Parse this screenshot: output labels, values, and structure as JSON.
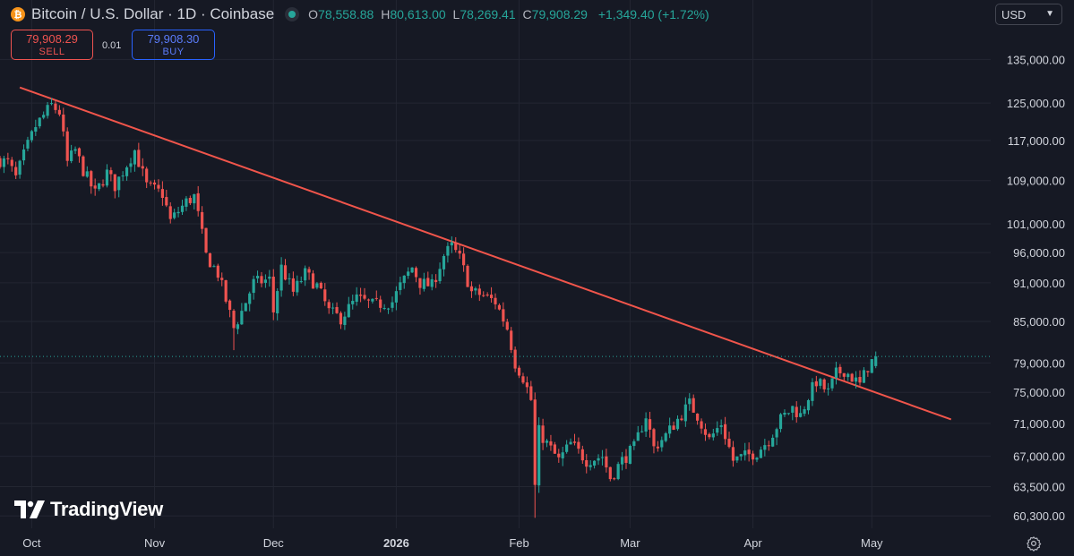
{
  "header": {
    "coin_icon": "bitcoin-icon",
    "coin_glyph": "₿",
    "title": "Bitcoin / U.S. Dollar · 1D · Coinbase",
    "status_icon": "market-status-dot",
    "o_label": "O",
    "o_value": "78,558.88",
    "h_label": "H",
    "h_value": "80,613.00",
    "l_label": "L",
    "l_value": "78,269.41",
    "c_label": "C",
    "c_value": "79,908.29",
    "change": "+1,349.40 (+1.72%)"
  },
  "trade": {
    "sell_price": "79,908.29",
    "sell_label": "SELL",
    "spread": "0.01",
    "buy_price": "79,908.30",
    "buy_label": "BUY"
  },
  "currency": {
    "value": "USD",
    "icon": "chevron-down-icon"
  },
  "branding": {
    "logo_icon": "tradingview-logo-icon",
    "name": "TradingView"
  },
  "colors": {
    "background": "#161924",
    "up": "#26a69a",
    "down": "#ef5350",
    "trendline": "#f0554b",
    "grid": "#232632",
    "axis_text": "#d1d4dc"
  },
  "chart_data": {
    "type": "candlestick",
    "title": "Bitcoin / U.S. Dollar · 1D · Coinbase",
    "xlabel": "",
    "ylabel": "",
    "interval": "1D",
    "y_scale": "log",
    "ylim": [
      59000,
      143000
    ],
    "y_ticks": [
      {
        "v": 135000,
        "label": "135,000.00"
      },
      {
        "v": 125000,
        "label": "125,000.00"
      },
      {
        "v": 117000,
        "label": "117,000.00"
      },
      {
        "v": 109000,
        "label": "109,000.00"
      },
      {
        "v": 101000,
        "label": "101,000.00"
      },
      {
        "v": 96000,
        "label": "96,000.00"
      },
      {
        "v": 91000,
        "label": "91,000.00"
      },
      {
        "v": 85000,
        "label": "85,000.00"
      },
      {
        "v": 79000,
        "label": "79,000.00"
      },
      {
        "v": 75000,
        "label": "75,000.00"
      },
      {
        "v": 71000,
        "label": "71,000.00"
      },
      {
        "v": 67000,
        "label": "67,000.00"
      },
      {
        "v": 63500,
        "label": "63,500.00"
      },
      {
        "v": 60300,
        "label": "60,300.00"
      }
    ],
    "x_range": [
      "2025-09-23",
      "2026-05-31"
    ],
    "x_ticks": [
      {
        "date": "2025-10-01",
        "label": "Oct",
        "bold": false
      },
      {
        "date": "2025-11-01",
        "label": "Nov",
        "bold": false
      },
      {
        "date": "2025-12-01",
        "label": "Dec",
        "bold": false
      },
      {
        "date": "2026-01-01",
        "label": "2026",
        "bold": true
      },
      {
        "date": "2026-02-01",
        "label": "Feb",
        "bold": false
      },
      {
        "date": "2026-03-01",
        "label": "Mar",
        "bold": false
      },
      {
        "date": "2026-04-01",
        "label": "Apr",
        "bold": false
      },
      {
        "date": "2026-05-01",
        "label": "May",
        "bold": false
      }
    ],
    "last_price": 79908.29,
    "trendline": {
      "start": {
        "date": "2025-09-28",
        "price": 128500
      },
      "end": {
        "date": "2026-05-21",
        "price": 71500
      }
    },
    "grid": true,
    "anchors": [
      {
        "date": "2025-09-23",
        "close": 113000
      },
      {
        "date": "2025-09-25",
        "close": 112500
      },
      {
        "date": "2025-09-27",
        "close": 109500
      },
      {
        "date": "2025-09-29",
        "close": 114000
      },
      {
        "date": "2025-10-02",
        "close": 120000
      },
      {
        "date": "2025-10-06",
        "close": 124500
      },
      {
        "date": "2025-10-08",
        "close": 123000
      },
      {
        "date": "2025-10-10",
        "close": 112500
      },
      {
        "date": "2025-10-12",
        "close": 115000
      },
      {
        "date": "2025-10-14",
        "close": 111000
      },
      {
        "date": "2025-10-17",
        "close": 106500
      },
      {
        "date": "2025-10-20",
        "close": 110500
      },
      {
        "date": "2025-10-22",
        "close": 108000
      },
      {
        "date": "2025-10-27",
        "close": 115000
      },
      {
        "date": "2025-10-30",
        "close": 108000
      },
      {
        "date": "2025-11-03",
        "close": 106500
      },
      {
        "date": "2025-11-05",
        "close": 101500
      },
      {
        "date": "2025-11-09",
        "close": 105000
      },
      {
        "date": "2025-11-11",
        "close": 106000
      },
      {
        "date": "2025-11-14",
        "close": 95500
      },
      {
        "date": "2025-11-17",
        "close": 92500
      },
      {
        "date": "2025-11-21",
        "close": 84000
      },
      {
        "date": "2025-11-23",
        "close": 86500
      },
      {
        "date": "2025-11-26",
        "close": 91000
      },
      {
        "date": "2025-11-30",
        "close": 91500
      },
      {
        "date": "2025-12-01",
        "close": 86500
      },
      {
        "date": "2025-12-03",
        "close": 93500
      },
      {
        "date": "2025-12-06",
        "close": 89500
      },
      {
        "date": "2025-12-09",
        "close": 92500
      },
      {
        "date": "2025-12-12",
        "close": 90500
      },
      {
        "date": "2025-12-15",
        "close": 86500
      },
      {
        "date": "2025-12-18",
        "close": 85500
      },
      {
        "date": "2025-12-22",
        "close": 88500
      },
      {
        "date": "2025-12-26",
        "close": 87500
      },
      {
        "date": "2025-12-31",
        "close": 88000
      },
      {
        "date": "2026-01-02",
        "close": 90500
      },
      {
        "date": "2026-01-05",
        "close": 93500
      },
      {
        "date": "2026-01-07",
        "close": 91000
      },
      {
        "date": "2026-01-10",
        "close": 90500
      },
      {
        "date": "2026-01-13",
        "close": 95500
      },
      {
        "date": "2026-01-15",
        "close": 97000
      },
      {
        "date": "2026-01-17",
        "close": 95000
      },
      {
        "date": "2026-01-20",
        "close": 89500
      },
      {
        "date": "2026-01-23",
        "close": 89000
      },
      {
        "date": "2026-01-26",
        "close": 88000
      },
      {
        "date": "2026-01-29",
        "close": 84000
      },
      {
        "date": "2026-01-31",
        "close": 79000
      },
      {
        "date": "2026-02-02",
        "close": 77000
      },
      {
        "date": "2026-02-04",
        "close": 74000
      },
      {
        "date": "2026-02-05",
        "close": 63500
      },
      {
        "date": "2026-02-06",
        "close": 70000
      },
      {
        "date": "2026-02-08",
        "close": 68500
      },
      {
        "date": "2026-02-11",
        "close": 66500
      },
      {
        "date": "2026-02-14",
        "close": 68500
      },
      {
        "date": "2026-02-18",
        "close": 66500
      },
      {
        "date": "2026-02-22",
        "close": 67000
      },
      {
        "date": "2026-02-24",
        "close": 64500
      },
      {
        "date": "2026-02-27",
        "close": 66500
      },
      {
        "date": "2026-03-02",
        "close": 68000
      },
      {
        "date": "2026-03-05",
        "close": 72000
      },
      {
        "date": "2026-03-07",
        "close": 68000
      },
      {
        "date": "2026-03-10",
        "close": 69500
      },
      {
        "date": "2026-03-13",
        "close": 71500
      },
      {
        "date": "2026-03-16",
        "close": 73500
      },
      {
        "date": "2026-03-18",
        "close": 72000
      },
      {
        "date": "2026-03-21",
        "close": 69000
      },
      {
        "date": "2026-03-24",
        "close": 71000
      },
      {
        "date": "2026-03-27",
        "close": 66500
      },
      {
        "date": "2026-03-30",
        "close": 67000
      },
      {
        "date": "2026-04-02",
        "close": 67500
      },
      {
        "date": "2026-04-05",
        "close": 69000
      },
      {
        "date": "2026-04-08",
        "close": 71500
      },
      {
        "date": "2026-04-11",
        "close": 73000
      },
      {
        "date": "2026-04-13",
        "close": 72000
      },
      {
        "date": "2026-04-15",
        "close": 74500
      },
      {
        "date": "2026-04-17",
        "close": 76500
      },
      {
        "date": "2026-04-20",
        "close": 75000
      },
      {
        "date": "2026-04-22",
        "close": 77500
      },
      {
        "date": "2026-04-24",
        "close": 78000
      },
      {
        "date": "2026-04-26",
        "close": 77000
      },
      {
        "date": "2026-04-28",
        "close": 76000
      },
      {
        "date": "2026-04-30",
        "close": 78500
      },
      {
        "date": "2026-05-02",
        "close": 79908.29
      }
    ]
  }
}
